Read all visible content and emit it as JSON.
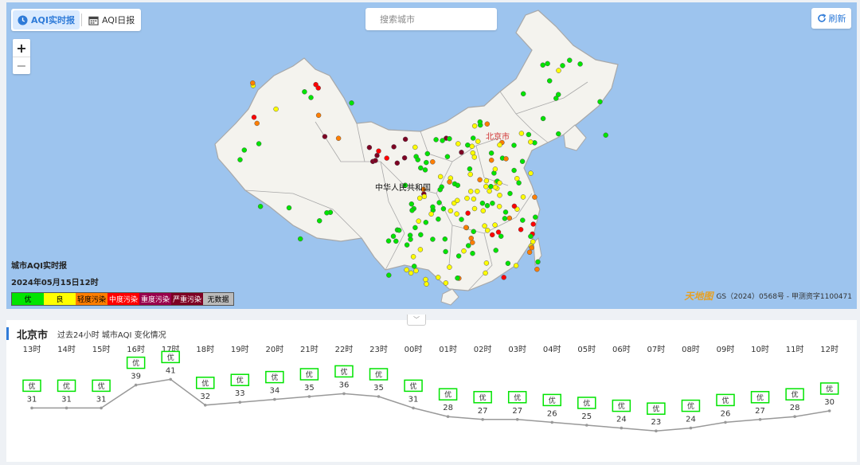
{
  "tabs": [
    {
      "label": "AQI实时报",
      "active": true,
      "icon": "clock-icon"
    },
    {
      "label": "AQI日报",
      "active": false,
      "icon": "calendar-icon"
    }
  ],
  "search": {
    "placeholder": "搜索城市"
  },
  "refresh": {
    "label": "刷新"
  },
  "zoom": {
    "in": "+",
    "out": "−"
  },
  "map": {
    "country_label": "中华人民共和国",
    "capital_label": "北京市",
    "legend_title": "城市AQI实时报",
    "legend_time": "2024年05月15日12时",
    "legend": [
      {
        "label": "优",
        "color": "#00e400",
        "text": "#000000"
      },
      {
        "label": "良",
        "color": "#ffff00",
        "text": "#000000"
      },
      {
        "label": "轻度污染",
        "color": "#ff7e00",
        "text": "#000000"
      },
      {
        "label": "中度污染",
        "color": "#ff0000",
        "text": "#ffffff"
      },
      {
        "label": "重度污染",
        "color": "#99004c",
        "text": "#ffffff"
      },
      {
        "label": "严重污染",
        "color": "#7e0023",
        "text": "#ffffff"
      },
      {
        "label": "无数据",
        "color": "#bbbbbb",
        "text": "#000000"
      }
    ],
    "logo_text": "天地图",
    "copyright": "GS（2024）0568号 - 甲测资字1100471",
    "colors": {
      "sea": "#9dc4ee",
      "land": "#f4f3ee",
      "border": "#a8a8a8"
    }
  },
  "panel": {
    "city": "北京市",
    "description": "过去24小时 城市AQI 变化情况"
  },
  "chart_data": {
    "type": "line",
    "x": [
      "13时",
      "14时",
      "15时",
      "16时",
      "17时",
      "18时",
      "19时",
      "20时",
      "21时",
      "22时",
      "23时",
      "00时",
      "01时",
      "02时",
      "03时",
      "04时",
      "05时",
      "06时",
      "07时",
      "08时",
      "09时",
      "10时",
      "11时",
      "12时"
    ],
    "values": [
      31,
      31,
      31,
      39,
      41,
      32,
      33,
      34,
      35,
      36,
      35,
      31,
      28,
      27,
      27,
      26,
      25,
      24,
      23,
      24,
      26,
      27,
      28,
      30
    ],
    "levels": [
      "优",
      "优",
      "优",
      "优",
      "优",
      "优",
      "优",
      "优",
      "优",
      "优",
      "优",
      "优",
      "优",
      "优",
      "优",
      "优",
      "优",
      "优",
      "优",
      "优",
      "优",
      "优",
      "优",
      "优"
    ],
    "line_color": "#999999",
    "badge_color": "#00e400"
  }
}
